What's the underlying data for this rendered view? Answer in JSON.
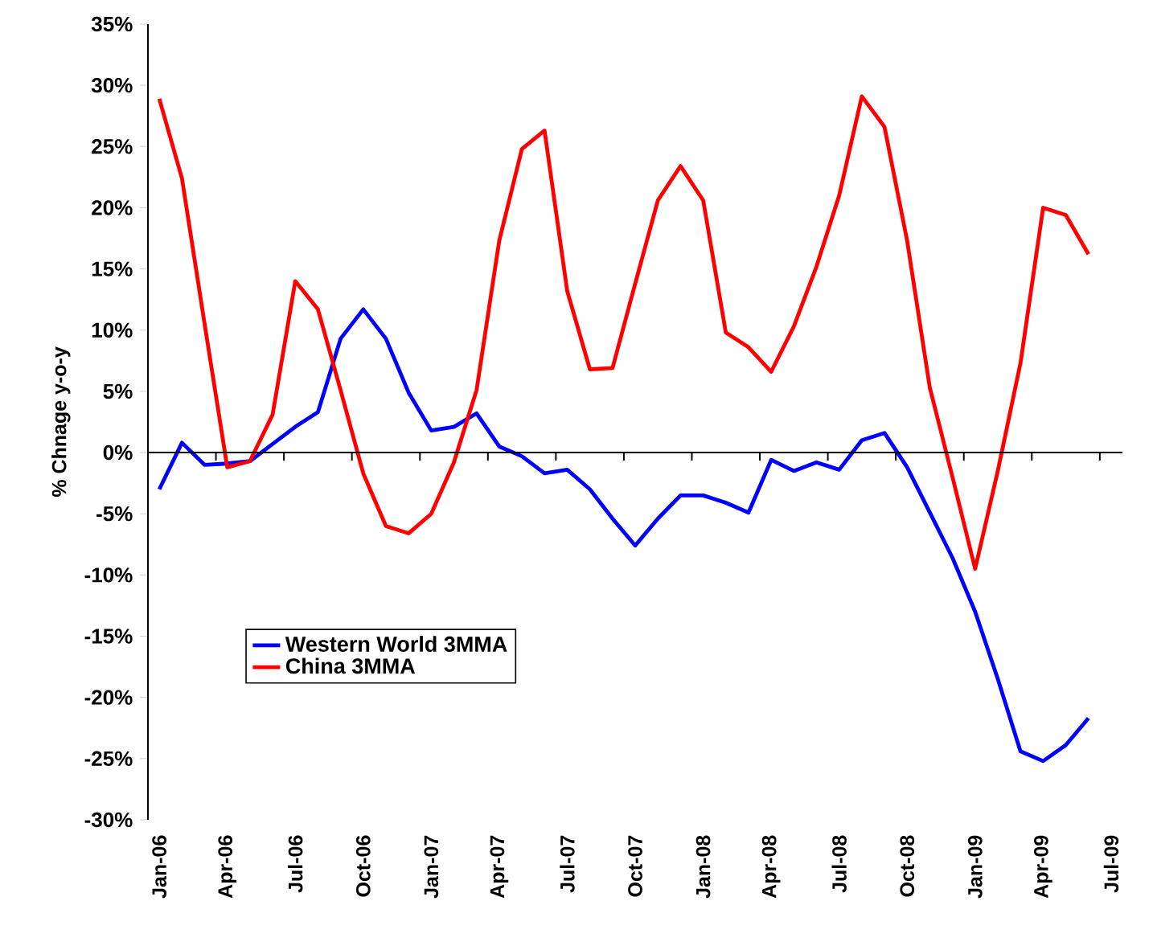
{
  "chart_data": {
    "type": "line",
    "ylabel": "% Chnage y-o-y",
    "categories": [
      "Jan-06",
      null,
      null,
      "Apr-06",
      null,
      null,
      "Jul-06",
      null,
      null,
      "Oct-06",
      null,
      null,
      "Jan-07",
      null,
      null,
      "Apr-07",
      null,
      null,
      "Jul-07",
      null,
      null,
      "Oct-07",
      null,
      null,
      "Jan-08",
      null,
      null,
      "Apr-08",
      null,
      null,
      "Jul-08",
      null,
      null,
      "Oct-08",
      null,
      null,
      "Jan-09",
      null,
      null,
      "Apr-09",
      null,
      null,
      "Jul-09"
    ],
    "series": [
      {
        "name": "Western World 3MMA",
        "color": "#0000ff",
        "values": [
          -3.0,
          0.8,
          -1.0,
          -0.9,
          -0.7,
          0.7,
          2.1,
          3.3,
          9.3,
          11.7,
          9.3,
          4.9,
          1.8,
          2.1,
          3.2,
          0.5,
          -0.3,
          -1.7,
          -1.4,
          -3.0,
          -5.4,
          -7.6,
          -5.4,
          -3.5,
          -3.5,
          -4.1,
          -4.9,
          -0.6,
          -1.5,
          -0.8,
          -1.4,
          1.0,
          1.6,
          -1.2,
          -4.9,
          -8.6,
          -13.0,
          -18.5,
          -24.4,
          -25.2,
          -23.9,
          -21.7,
          null
        ]
      },
      {
        "name": "China 3MMA",
        "color": "#ff0000",
        "values": [
          28.9,
          22.4,
          10.5,
          -1.2,
          -0.7,
          3.1,
          14.0,
          11.7,
          5.1,
          -1.7,
          -6.0,
          -6.6,
          -5.0,
          -0.8,
          5.1,
          17.3,
          24.8,
          26.3,
          13.2,
          6.8,
          6.9,
          13.8,
          20.6,
          23.4,
          20.6,
          9.8,
          8.6,
          6.6,
          10.3,
          15.2,
          21.0,
          29.1,
          26.6,
          17.3,
          5.3,
          -2.0,
          -9.5,
          -1.5,
          7.3,
          20.0,
          19.4,
          16.2,
          null
        ]
      }
    ],
    "ylim": [
      -30,
      35
    ],
    "yticks": [
      {
        "value": -30,
        "label": "-30%"
      },
      {
        "value": -25,
        "label": "-25%"
      },
      {
        "value": -20,
        "label": "-20%"
      },
      {
        "value": -15,
        "label": "-15%"
      },
      {
        "value": -10,
        "label": "-10%"
      },
      {
        "value": -5,
        "label": "-5%"
      },
      {
        "value": 0,
        "label": "0%"
      },
      {
        "value": 5,
        "label": "5%"
      },
      {
        "value": 10,
        "label": "10%"
      },
      {
        "value": 15,
        "label": "15%"
      },
      {
        "value": 20,
        "label": "20%"
      },
      {
        "value": 25,
        "label": "25%"
      },
      {
        "value": 30,
        "label": "30%"
      },
      {
        "value": 35,
        "label": "35%"
      }
    ],
    "legend": "bottom left",
    "marker": "none",
    "line_style": "solid"
  }
}
